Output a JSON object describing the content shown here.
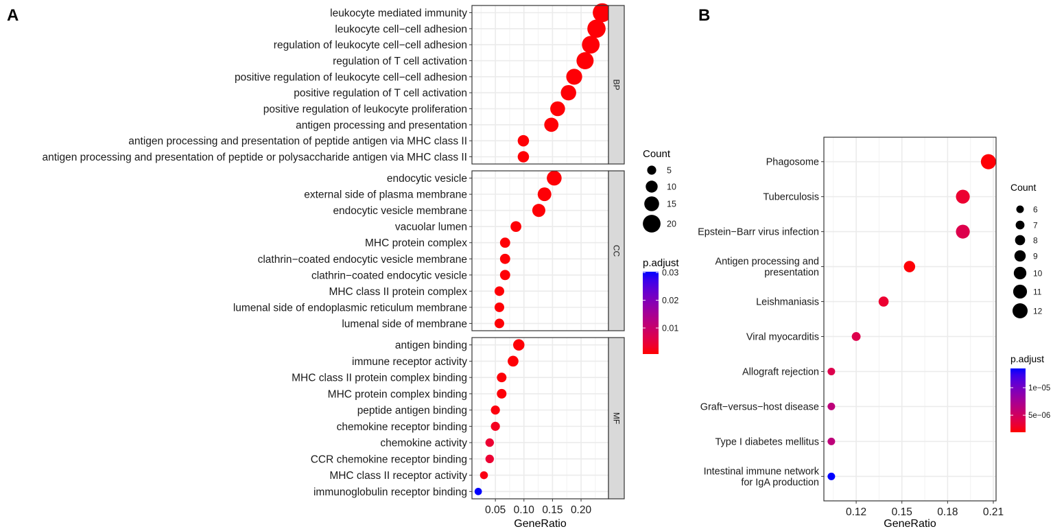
{
  "chart_data": [
    {
      "panel_label": "A",
      "type": "scatter",
      "xlabel": "GeneRatio",
      "xlim": [
        0.009,
        0.248
      ],
      "xticks": [
        "0.05",
        "0.10",
        "0.15",
        "0.20"
      ],
      "xtick_values": [
        0.05,
        0.1,
        0.15,
        0.2
      ],
      "grid": true,
      "size_legend": {
        "title": "Count",
        "values": [
          5,
          10,
          15,
          20
        ]
      },
      "color_legend": {
        "title": "p.adjust",
        "range": [
          0.0006,
          0.0303
        ],
        "ticks": [
          "0.03",
          "0.02",
          "0.01"
        ],
        "tick_values": [
          0.03,
          0.02,
          0.01
        ],
        "low_color": "#FF0000",
        "high_color": "#0000FF"
      },
      "facets": [
        {
          "name": "BP",
          "rows": [
            {
              "term": "leukocyte mediated immunity",
              "x": 0.237,
              "count": 22,
              "p": 0.0008
            },
            {
              "term": "leukocyte cell−cell adhesion",
              "x": 0.227,
              "count": 21,
              "p": 0.0008
            },
            {
              "term": "regulation of leukocyte cell−cell adhesion",
              "x": 0.217,
              "count": 20,
              "p": 0.0008
            },
            {
              "term": "regulation of T cell activation",
              "x": 0.207,
              "count": 19,
              "p": 0.0008
            },
            {
              "term": "positive regulation of leukocyte cell−cell adhesion",
              "x": 0.188,
              "count": 17,
              "p": 0.0008
            },
            {
              "term": "positive regulation of T cell activation",
              "x": 0.178,
              "count": 16,
              "p": 0.0008
            },
            {
              "term": "positive regulation of leukocyte proliferation",
              "x": 0.159,
              "count": 15,
              "p": 0.0008
            },
            {
              "term": "antigen processing and presentation",
              "x": 0.148,
              "count": 14,
              "p": 0.0008
            },
            {
              "term": "antigen processing and presentation of peptide antigen via MHC class II",
              "x": 0.099,
              "count": 9,
              "p": 0.0008
            },
            {
              "term": "antigen processing and presentation of peptide or polysaccharide antigen via MHC class II",
              "x": 0.099,
              "count": 9,
              "p": 0.0008
            }
          ]
        },
        {
          "name": "CC",
          "rows": [
            {
              "term": "endocytic vesicle",
              "x": 0.153,
              "count": 15,
              "p": 0.0008
            },
            {
              "term": "external side of plasma membrane",
              "x": 0.136,
              "count": 13,
              "p": 0.0008
            },
            {
              "term": "endocytic vesicle membrane",
              "x": 0.126,
              "count": 12,
              "p": 0.0008
            },
            {
              "term": "vacuolar lumen",
              "x": 0.086,
              "count": 8,
              "p": 0.0008
            },
            {
              "term": "MHC protein complex",
              "x": 0.067,
              "count": 7,
              "p": 0.0008
            },
            {
              "term": "clathrin−coated endocytic vesicle membrane",
              "x": 0.067,
              "count": 7,
              "p": 0.0008
            },
            {
              "term": "clathrin−coated endocytic vesicle",
              "x": 0.067,
              "count": 7,
              "p": 0.0008
            },
            {
              "term": "MHC class II protein complex",
              "x": 0.057,
              "count": 6,
              "p": 0.0008
            },
            {
              "term": "lumenal side of endoplasmic reticulum membrane",
              "x": 0.057,
              "count": 6,
              "p": 0.0008
            },
            {
              "term": "lumenal side of membrane",
              "x": 0.057,
              "count": 6,
              "p": 0.0008
            }
          ]
        },
        {
          "name": "MF",
          "rows": [
            {
              "term": "antigen binding",
              "x": 0.091,
              "count": 9,
              "p": 0.0008
            },
            {
              "term": "immune receptor activity",
              "x": 0.081,
              "count": 8,
              "p": 0.0008
            },
            {
              "term": "MHC class II protein complex binding",
              "x": 0.061,
              "count": 6,
              "p": 0.0009
            },
            {
              "term": "MHC protein complex binding",
              "x": 0.061,
              "count": 6,
              "p": 0.0009
            },
            {
              "term": "peptide antigen binding",
              "x": 0.05,
              "count": 5,
              "p": 0.0012
            },
            {
              "term": "chemokine receptor binding",
              "x": 0.05,
              "count": 5,
              "p": 0.0025
            },
            {
              "term": "chemokine activity",
              "x": 0.04,
              "count": 4,
              "p": 0.004
            },
            {
              "term": "CCR chemokine receptor binding",
              "x": 0.04,
              "count": 4,
              "p": 0.004
            },
            {
              "term": "MHC class II receptor activity",
              "x": 0.03,
              "count": 3,
              "p": 0.0015
            },
            {
              "term": "immunoglobulin receptor binding",
              "x": 0.02,
              "count": 2,
              "p": 0.0303
            }
          ]
        }
      ]
    },
    {
      "panel_label": "B",
      "type": "scatter",
      "xlabel": "GeneRatio",
      "xlim": [
        0.0988,
        0.2118
      ],
      "xticks": [
        "0.12",
        "0.15",
        "0.18",
        "0.21"
      ],
      "xtick_values": [
        0.12,
        0.15,
        0.18,
        0.21
      ],
      "grid": true,
      "size_legend": {
        "title": "Count",
        "values": [
          6,
          7,
          8,
          9,
          10,
          11,
          12
        ]
      },
      "color_legend": {
        "title": "p.adjust",
        "range": [
          1.9e-06,
          1.35e-05
        ],
        "ticks": [
          "1e−05",
          "5e−06"
        ],
        "tick_values": [
          1e-05,
          5e-06
        ],
        "low_color": "#FF0000",
        "high_color": "#0000FF"
      },
      "rows": [
        {
          "term": "Phagosome",
          "x": 0.2068,
          "count": 12,
          "p": 2e-06
        },
        {
          "term": "Tuberculosis",
          "x": 0.19,
          "count": 11,
          "p": 3.2e-06
        },
        {
          "term": "Epstein−Barr virus infection",
          "x": 0.19,
          "count": 11,
          "p": 4.2e-06
        },
        {
          "term": "Antigen processing and\npresentation",
          "x": 0.155,
          "count": 9,
          "p": 2e-06
        },
        {
          "term": "Leishmaniasis",
          "x": 0.138,
          "count": 8,
          "p": 3.2e-06
        },
        {
          "term": "Viral myocarditis",
          "x": 0.12,
          "count": 7,
          "p": 4.2e-06
        },
        {
          "term": "Allograft rejection",
          "x": 0.1037,
          "count": 6,
          "p": 4.2e-06
        },
        {
          "term": "Graft−versus−host disease",
          "x": 0.1037,
          "count": 6,
          "p": 6.2e-06
        },
        {
          "term": "Type I diabetes mellitus",
          "x": 0.1037,
          "count": 6,
          "p": 6.2e-06
        },
        {
          "term": "Intestinal immune network\nfor IgA production",
          "x": 0.1037,
          "count": 6,
          "p": 1.35e-05
        }
      ]
    }
  ]
}
